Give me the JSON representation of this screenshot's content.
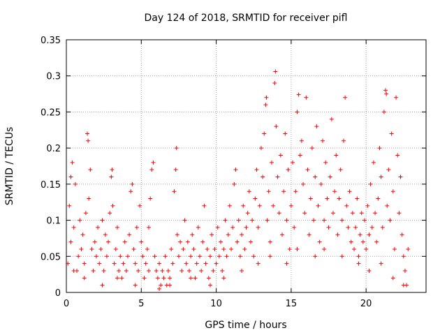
{
  "chart_data": {
    "type": "scatter",
    "title": "Day 124 of 2018, SRMTID for receiver pifl",
    "xlabel": "GPS time / hours",
    "ylabel": "SRMTID / TECUs",
    "xlim": [
      0,
      24
    ],
    "ylim": [
      0,
      0.35
    ],
    "xticks": [
      0,
      5,
      10,
      15,
      20
    ],
    "xtick_labels": [
      "0",
      "5",
      "10",
      "15",
      "20"
    ],
    "yticks": [
      0,
      0.05,
      0.1,
      0.15,
      0.2,
      0.25,
      0.3,
      0.35
    ],
    "ytick_labels": [
      "0",
      "0.05",
      "0.1",
      "0.15",
      "0.2",
      "0.25",
      "0.3",
      "0.35"
    ],
    "grid": true,
    "marker": "+",
    "color": "#ff0000",
    "series": [
      {
        "name": "SRMTID",
        "points": [
          [
            0.1,
            0.04
          ],
          [
            0.2,
            0.12
          ],
          [
            0.3,
            0.07
          ],
          [
            0.3,
            0.16
          ],
          [
            0.4,
            0.18
          ],
          [
            0.5,
            0.09
          ],
          [
            0.6,
            0.15
          ],
          [
            0.7,
            0.03
          ],
          [
            0.8,
            0.05
          ],
          [
            0.9,
            0.1
          ],
          [
            1.0,
            0.06
          ],
          [
            1.1,
            0.08
          ],
          [
            1.2,
            0.04
          ],
          [
            1.3,
            0.11
          ],
          [
            1.4,
            0.22
          ],
          [
            1.45,
            0.21
          ],
          [
            1.5,
            0.13
          ],
          [
            1.6,
            0.17
          ],
          [
            1.7,
            0.06
          ],
          [
            1.8,
            0.03
          ],
          [
            1.9,
            0.07
          ],
          [
            2.0,
            0.05
          ],
          [
            2.1,
            0.09
          ],
          [
            2.2,
            0.04
          ],
          [
            2.3,
            0.06
          ],
          [
            2.4,
            0.1
          ],
          [
            2.5,
            0.03
          ],
          [
            2.6,
            0.08
          ],
          [
            2.7,
            0.05
          ],
          [
            2.8,
            0.07
          ],
          [
            2.9,
            0.11
          ],
          [
            3.0,
            0.16
          ],
          [
            3.05,
            0.17
          ],
          [
            3.1,
            0.12
          ],
          [
            3.2,
            0.04
          ],
          [
            3.3,
            0.06
          ],
          [
            3.4,
            0.09
          ],
          [
            3.5,
            0.03
          ],
          [
            3.6,
            0.05
          ],
          [
            3.7,
            0.02
          ],
          [
            3.8,
            0.04
          ],
          [
            3.9,
            0.07
          ],
          [
            4.0,
            0.03
          ],
          [
            4.1,
            0.05
          ],
          [
            4.2,
            0.08
          ],
          [
            4.3,
            0.14
          ],
          [
            4.4,
            0.15
          ],
          [
            4.5,
            0.06
          ],
          [
            4.6,
            0.04
          ],
          [
            4.7,
            0.09
          ],
          [
            4.8,
            0.03
          ],
          [
            4.9,
            0.12
          ],
          [
            5.0,
            0.07
          ],
          [
            5.1,
            0.05
          ],
          [
            5.2,
            0.02
          ],
          [
            5.3,
            0.04
          ],
          [
            5.4,
            0.06
          ],
          [
            5.5,
            0.09
          ],
          [
            5.6,
            0.13
          ],
          [
            5.7,
            0.17
          ],
          [
            5.8,
            0.18
          ],
          [
            5.9,
            0.05
          ],
          [
            6.0,
            0.03
          ],
          [
            6.1,
            0.02
          ],
          [
            6.2,
            0.04
          ],
          [
            6.3,
            0.01
          ],
          [
            6.4,
            0.03
          ],
          [
            6.5,
            0.02
          ],
          [
            6.6,
            0.05
          ],
          [
            6.7,
            0.01
          ],
          [
            6.8,
            0.03
          ],
          [
            6.9,
            0.02
          ],
          [
            7.0,
            0.06
          ],
          [
            7.1,
            0.04
          ],
          [
            7.2,
            0.14
          ],
          [
            7.3,
            0.17
          ],
          [
            7.35,
            0.2
          ],
          [
            7.4,
            0.08
          ],
          [
            7.5,
            0.05
          ],
          [
            7.6,
            0.07
          ],
          [
            7.7,
            0.03
          ],
          [
            7.8,
            0.06
          ],
          [
            7.9,
            0.1
          ],
          [
            8.0,
            0.04
          ],
          [
            8.1,
            0.07
          ],
          [
            8.2,
            0.03
          ],
          [
            8.3,
            0.05
          ],
          [
            8.4,
            0.08
          ],
          [
            8.5,
            0.06
          ],
          [
            8.6,
            0.02
          ],
          [
            8.7,
            0.04
          ],
          [
            8.8,
            0.09
          ],
          [
            8.9,
            0.05
          ],
          [
            9.0,
            0.03
          ],
          [
            9.1,
            0.07
          ],
          [
            9.2,
            0.12
          ],
          [
            9.3,
            0.04
          ],
          [
            9.4,
            0.06
          ],
          [
            9.5,
            0.02
          ],
          [
            9.6,
            0.05
          ],
          [
            9.7,
            0.08
          ],
          [
            9.8,
            0.03
          ],
          [
            9.9,
            0.06
          ],
          [
            10.0,
            0.04
          ],
          [
            10.1,
            0.09
          ],
          [
            10.2,
            0.05
          ],
          [
            10.3,
            0.07
          ],
          [
            10.4,
            0.03
          ],
          [
            10.5,
            0.06
          ],
          [
            10.6,
            0.1
          ],
          [
            10.7,
            0.05
          ],
          [
            10.8,
            0.08
          ],
          [
            10.9,
            0.12
          ],
          [
            11.0,
            0.06
          ],
          [
            11.1,
            0.09
          ],
          [
            11.2,
            0.15
          ],
          [
            11.3,
            0.17
          ],
          [
            11.4,
            0.07
          ],
          [
            11.5,
            0.1
          ],
          [
            11.6,
            0.05
          ],
          [
            11.7,
            0.08
          ],
          [
            11.8,
            0.12
          ],
          [
            11.9,
            0.06
          ],
          [
            12.0,
            0.09
          ],
          [
            12.1,
            0.11
          ],
          [
            12.2,
            0.14
          ],
          [
            12.3,
            0.07
          ],
          [
            12.4,
            0.1
          ],
          [
            12.5,
            0.05
          ],
          [
            12.6,
            0.13
          ],
          [
            12.7,
            0.17
          ],
          [
            12.8,
            0.09
          ],
          [
            12.9,
            0.12
          ],
          [
            13.0,
            0.2
          ],
          [
            13.1,
            0.16
          ],
          [
            13.2,
            0.22
          ],
          [
            13.3,
            0.26
          ],
          [
            13.35,
            0.27
          ],
          [
            13.4,
            0.1
          ],
          [
            13.5,
            0.14
          ],
          [
            13.6,
            0.07
          ],
          [
            13.7,
            0.18
          ],
          [
            13.8,
            0.12
          ],
          [
            13.9,
            0.29
          ],
          [
            13.95,
            0.306
          ],
          [
            14.0,
            0.23
          ],
          [
            14.1,
            0.16
          ],
          [
            14.2,
            0.11
          ],
          [
            14.3,
            0.19
          ],
          [
            14.4,
            0.08
          ],
          [
            14.5,
            0.14
          ],
          [
            14.6,
            0.22
          ],
          [
            14.7,
            0.1
          ],
          [
            14.8,
            0.17
          ],
          [
            14.9,
            0.06
          ],
          [
            15.0,
            0.12
          ],
          [
            15.1,
            0.18
          ],
          [
            15.2,
            0.09
          ],
          [
            15.3,
            0.14
          ],
          [
            15.4,
            0.25
          ],
          [
            15.5,
            0.274
          ],
          [
            15.6,
            0.19
          ],
          [
            15.7,
            0.21
          ],
          [
            15.8,
            0.15
          ],
          [
            15.9,
            0.11
          ],
          [
            16.0,
            0.27
          ],
          [
            16.1,
            0.17
          ],
          [
            16.2,
            0.08
          ],
          [
            16.3,
            0.13
          ],
          [
            16.4,
            0.2
          ],
          [
            16.5,
            0.1
          ],
          [
            16.6,
            0.16
          ],
          [
            16.7,
            0.23
          ],
          [
            16.8,
            0.12
          ],
          [
            16.9,
            0.07
          ],
          [
            17.0,
            0.15
          ],
          [
            17.1,
            0.21
          ],
          [
            17.2,
            0.1
          ],
          [
            17.3,
            0.18
          ],
          [
            17.4,
            0.13
          ],
          [
            17.5,
            0.09
          ],
          [
            17.6,
            0.16
          ],
          [
            17.7,
            0.24
          ],
          [
            17.8,
            0.11
          ],
          [
            17.9,
            0.14
          ],
          [
            18.0,
            0.19
          ],
          [
            18.1,
            0.08
          ],
          [
            18.2,
            0.13
          ],
          [
            18.3,
            0.17
          ],
          [
            18.4,
            0.1
          ],
          [
            18.5,
            0.21
          ],
          [
            18.6,
            0.27
          ],
          [
            18.7,
            0.12
          ],
          [
            18.8,
            0.09
          ],
          [
            18.9,
            0.14
          ],
          [
            19.0,
            0.07
          ],
          [
            19.1,
            0.11
          ],
          [
            19.2,
            0.06
          ],
          [
            19.3,
            0.09
          ],
          [
            19.4,
            0.13
          ],
          [
            19.5,
            0.05
          ],
          [
            19.6,
            0.08
          ],
          [
            19.7,
            0.11
          ],
          [
            19.8,
            0.07
          ],
          [
            19.9,
            0.1
          ],
          [
            20.0,
            0.06
          ],
          [
            20.1,
            0.12
          ],
          [
            20.2,
            0.08
          ],
          [
            20.3,
            0.15
          ],
          [
            20.4,
            0.09
          ],
          [
            20.5,
            0.18
          ],
          [
            20.6,
            0.11
          ],
          [
            20.7,
            0.07
          ],
          [
            20.8,
            0.13
          ],
          [
            20.9,
            0.2
          ],
          [
            21.0,
            0.16
          ],
          [
            21.1,
            0.09
          ],
          [
            21.2,
            0.25
          ],
          [
            21.3,
            0.28
          ],
          [
            21.35,
            0.275
          ],
          [
            21.4,
            0.12
          ],
          [
            21.5,
            0.17
          ],
          [
            21.6,
            0.1
          ],
          [
            21.7,
            0.22
          ],
          [
            21.8,
            0.14
          ],
          [
            21.9,
            0.06
          ],
          [
            22.0,
            0.27
          ],
          [
            22.1,
            0.19
          ],
          [
            22.2,
            0.11
          ],
          [
            22.3,
            0.16
          ],
          [
            22.4,
            0.08
          ],
          [
            22.5,
            0.05
          ],
          [
            22.6,
            0.03
          ],
          [
            22.7,
            0.01
          ],
          [
            22.8,
            0.06
          ],
          [
            0.5,
            0.03
          ],
          [
            1.2,
            0.02
          ],
          [
            2.4,
            0.01
          ],
          [
            3.4,
            0.02
          ],
          [
            4.6,
            0.01
          ],
          [
            5.5,
            0.03
          ],
          [
            6.2,
            0.005
          ],
          [
            6.9,
            0.01
          ],
          [
            8.3,
            0.02
          ],
          [
            9.6,
            0.01
          ],
          [
            10.5,
            0.02
          ],
          [
            11.7,
            0.03
          ],
          [
            12.8,
            0.04
          ],
          [
            13.6,
            0.05
          ],
          [
            14.7,
            0.04
          ],
          [
            15.4,
            0.06
          ],
          [
            16.6,
            0.05
          ],
          [
            17.2,
            0.06
          ],
          [
            18.4,
            0.05
          ],
          [
            19.5,
            0.04
          ],
          [
            20.2,
            0.03
          ],
          [
            21.0,
            0.04
          ],
          [
            21.8,
            0.02
          ],
          [
            22.5,
            0.01
          ]
        ]
      }
    ]
  }
}
